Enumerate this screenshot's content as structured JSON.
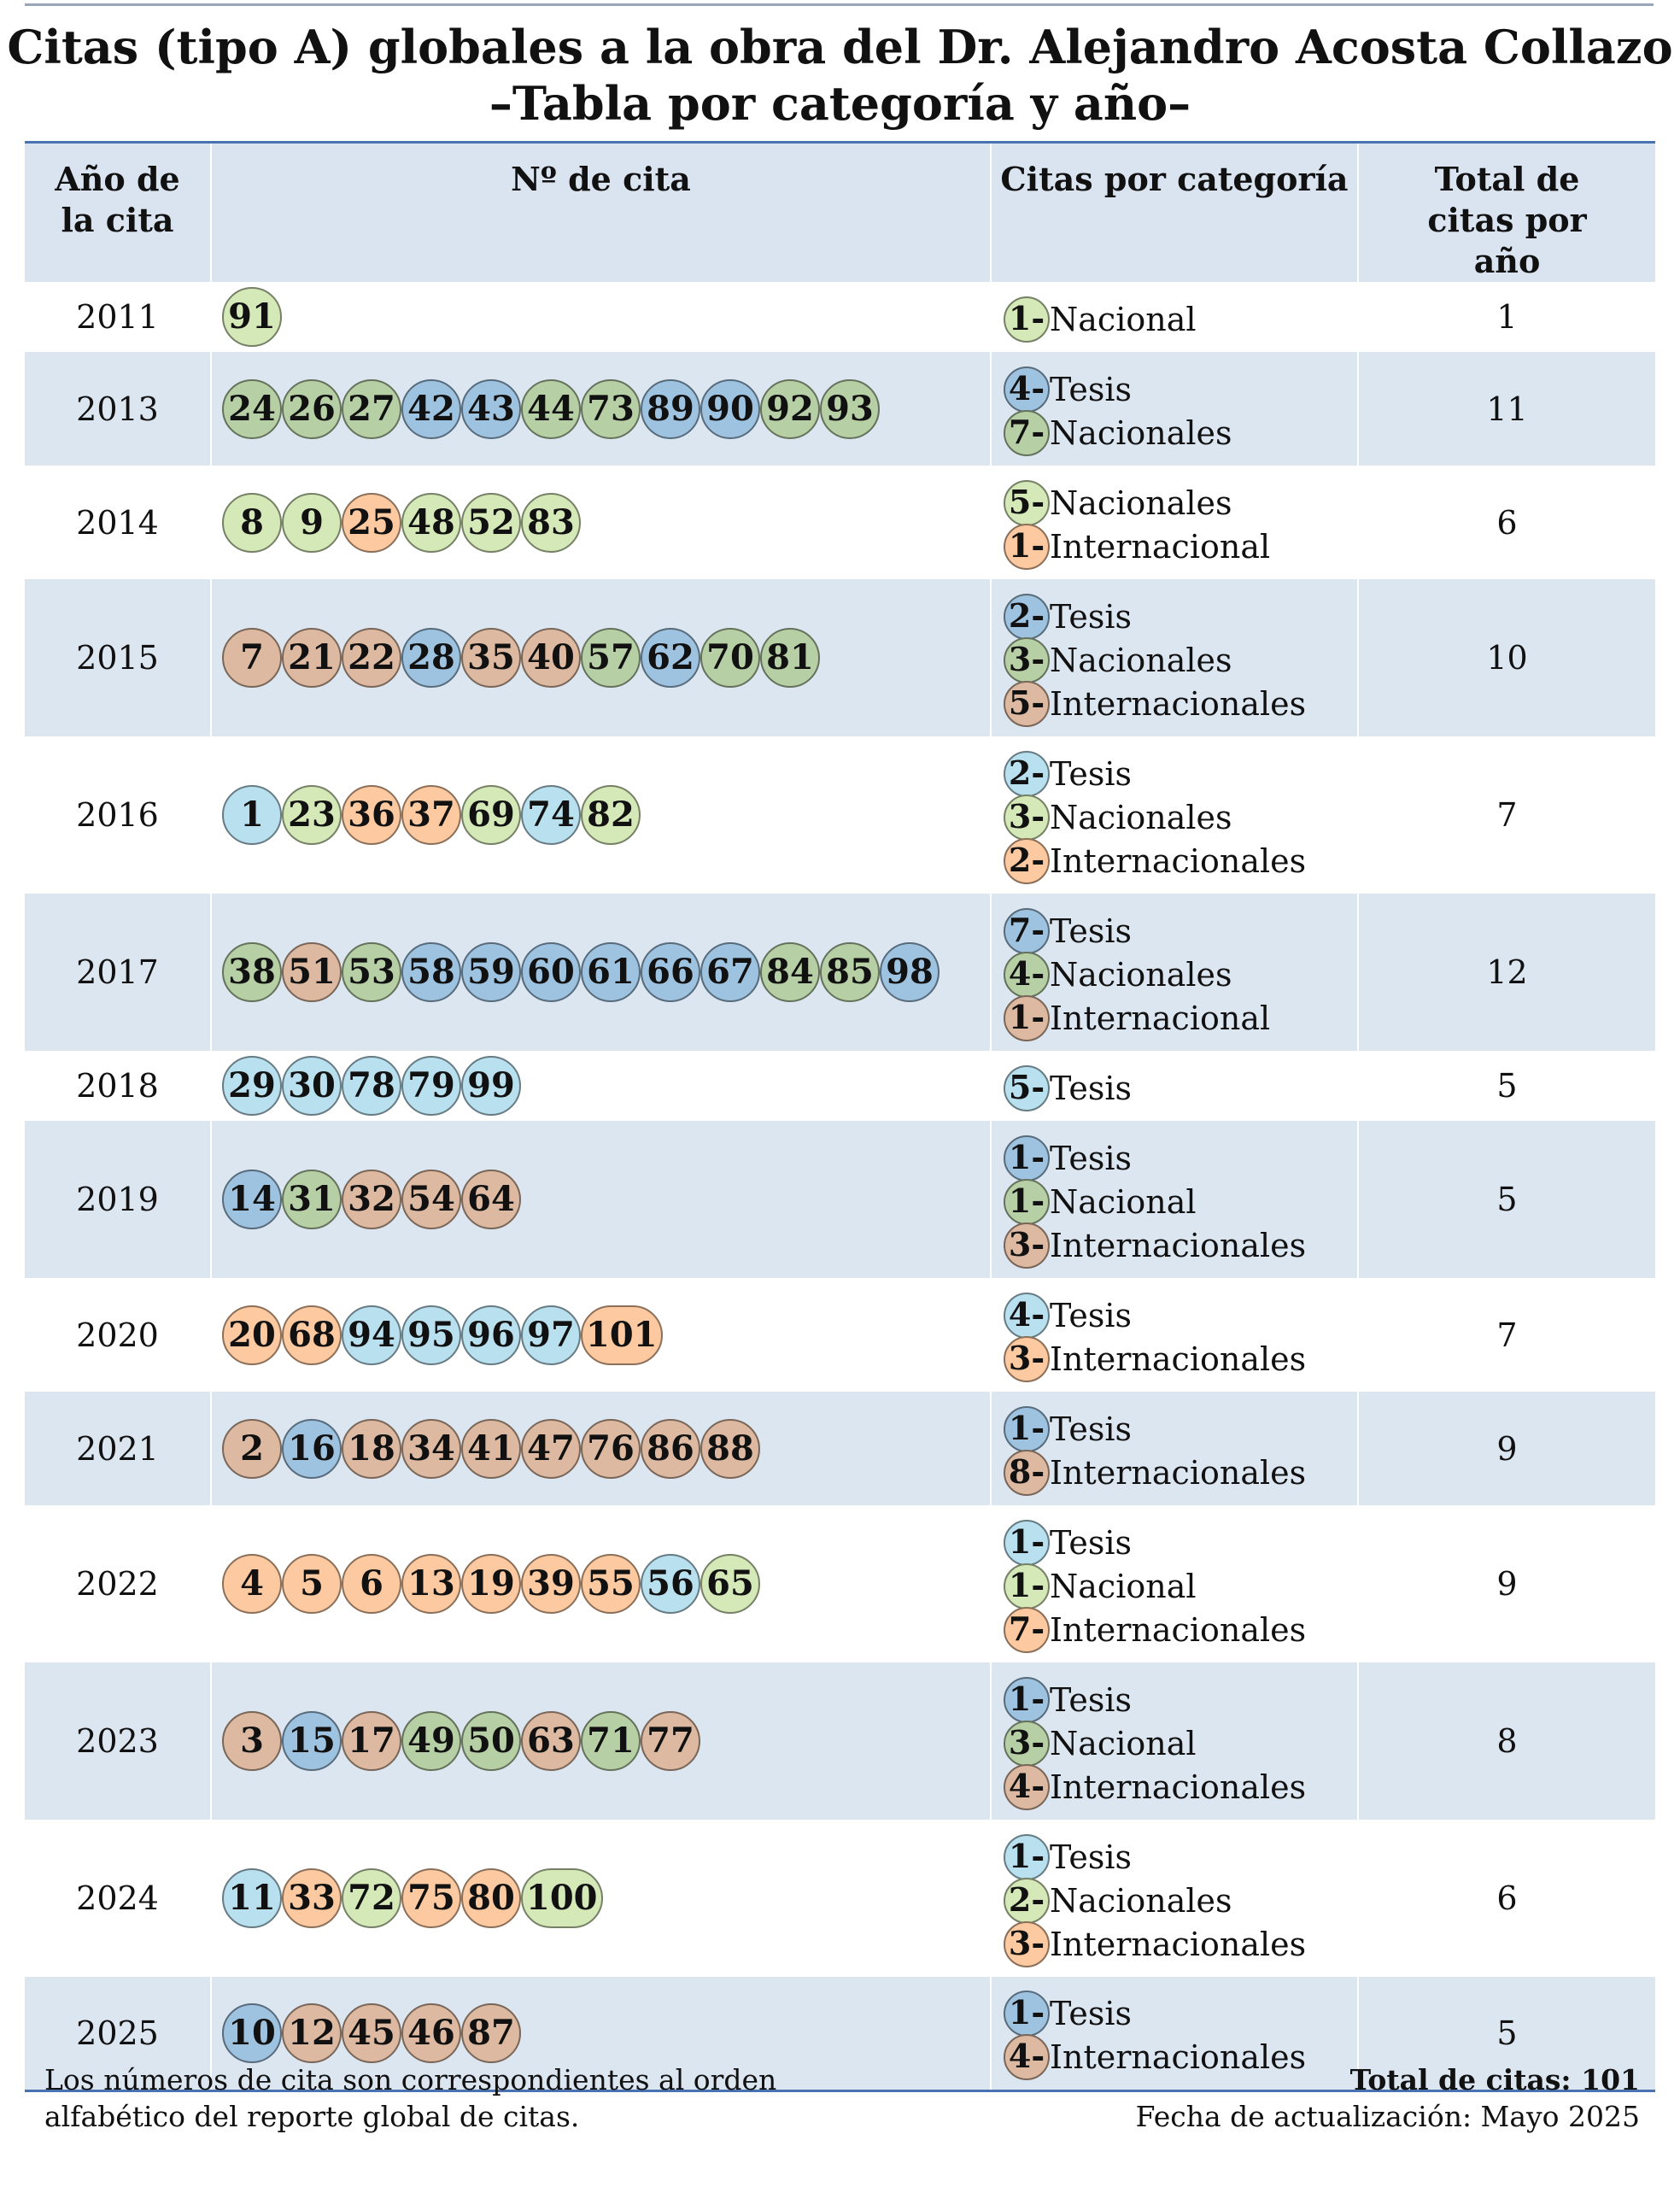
{
  "header": {
    "title": [
      "Citas (tipo A) globales a la obra del Dr. Alejandro Acosta Collazo",
      "–Tabla por categoría y año–"
    ]
  },
  "table": {
    "columns": [
      "Año de la cita",
      "Nº de cita",
      "Citas por categoría",
      "Total de citas por año"
    ],
    "rows": [
      {
        "year": "2011",
        "cites": [
          {
            "n": "91",
            "color": "#d5e8b8"
          }
        ],
        "categories": [
          {
            "count": "1-",
            "label": "Nacional",
            "color": "#d5e8b8"
          }
        ],
        "total": "1"
      },
      {
        "year": "2013",
        "cites": [
          {
            "n": "24",
            "color": "#b7cfa5"
          },
          {
            "n": "26",
            "color": "#b7cfa5"
          },
          {
            "n": "27",
            "color": "#b7cfa5"
          },
          {
            "n": "42",
            "color": "#9ec3e0"
          },
          {
            "n": "43",
            "color": "#9ec3e0"
          },
          {
            "n": "44",
            "color": "#b7cfa5"
          },
          {
            "n": "73",
            "color": "#b7cfa5"
          },
          {
            "n": "89",
            "color": "#9ec3e0"
          },
          {
            "n": "90",
            "color": "#9ec3e0"
          },
          {
            "n": "92",
            "color": "#b7cfa5"
          },
          {
            "n": "93",
            "color": "#b7cfa5"
          }
        ],
        "categories": [
          {
            "count": "4-",
            "label": "Tesis",
            "color": "#9ec3e0"
          },
          {
            "count": "7-",
            "label": "Nacionales",
            "color": "#b7cfa5"
          }
        ],
        "total": "11"
      },
      {
        "year": "2014",
        "cites": [
          {
            "n": "8",
            "color": "#d5e8b8"
          },
          {
            "n": "9",
            "color": "#d5e8b8"
          },
          {
            "n": "25",
            "color": "#fcc9a0"
          },
          {
            "n": "48",
            "color": "#d5e8b8"
          },
          {
            "n": "52",
            "color": "#d5e8b8"
          },
          {
            "n": "83",
            "color": "#d5e8b8"
          }
        ],
        "categories": [
          {
            "count": "5-",
            "label": "Nacionales",
            "color": "#d5e8b8"
          },
          {
            "count": "1-",
            "label": "Internacional",
            "color": "#fcc9a0"
          }
        ],
        "total": "6"
      },
      {
        "year": "2015",
        "cites": [
          {
            "n": "7",
            "color": "#dcb9a0"
          },
          {
            "n": "21",
            "color": "#dcb9a0"
          },
          {
            "n": "22",
            "color": "#dcb9a0"
          },
          {
            "n": "28",
            "color": "#9ec3e0"
          },
          {
            "n": "35",
            "color": "#dcb9a0"
          },
          {
            "n": "40",
            "color": "#dcb9a0"
          },
          {
            "n": "57",
            "color": "#b7cfa5"
          },
          {
            "n": "62",
            "color": "#9ec3e0"
          },
          {
            "n": "70",
            "color": "#b7cfa5"
          },
          {
            "n": "81",
            "color": "#b7cfa5"
          }
        ],
        "categories": [
          {
            "count": "2-",
            "label": "Tesis",
            "color": "#9ec3e0"
          },
          {
            "count": "3-",
            "label": "Nacionales",
            "color": "#b7cfa5"
          },
          {
            "count": "5-",
            "label": "Internacionales",
            "color": "#dcb9a0"
          }
        ],
        "total": "10"
      },
      {
        "year": "2016",
        "cites": [
          {
            "n": "1",
            "color": "#b9e0ef"
          },
          {
            "n": "23",
            "color": "#d5e8b8"
          },
          {
            "n": "36",
            "color": "#fcc9a0"
          },
          {
            "n": "37",
            "color": "#fcc9a0"
          },
          {
            "n": "69",
            "color": "#d5e8b8"
          },
          {
            "n": "74",
            "color": "#b9e0ef"
          },
          {
            "n": "82",
            "color": "#d5e8b8"
          }
        ],
        "categories": [
          {
            "count": "2-",
            "label": "Tesis",
            "color": "#b9e0ef"
          },
          {
            "count": "3-",
            "label": "Nacionales",
            "color": "#d5e8b8"
          },
          {
            "count": "2-",
            "label": "Internacionales",
            "color": "#fcc9a0"
          }
        ],
        "total": "7"
      },
      {
        "year": "2017",
        "cites": [
          {
            "n": "38",
            "color": "#b7cfa5"
          },
          {
            "n": "51",
            "color": "#dcb9a0"
          },
          {
            "n": "53",
            "color": "#b7cfa5"
          },
          {
            "n": "58",
            "color": "#9ec3e0"
          },
          {
            "n": "59",
            "color": "#9ec3e0"
          },
          {
            "n": "60",
            "color": "#9ec3e0"
          },
          {
            "n": "61",
            "color": "#9ec3e0"
          },
          {
            "n": "66",
            "color": "#9ec3e0"
          },
          {
            "n": "67",
            "color": "#9ec3e0"
          },
          {
            "n": "84",
            "color": "#b7cfa5"
          },
          {
            "n": "85",
            "color": "#b7cfa5"
          },
          {
            "n": "98",
            "color": "#9ec3e0"
          }
        ],
        "categories": [
          {
            "count": "7-",
            "label": "Tesis",
            "color": "#9ec3e0"
          },
          {
            "count": "4-",
            "label": "Nacionales",
            "color": "#b7cfa5"
          },
          {
            "count": "1-",
            "label": "Internacional",
            "color": "#dcb9a0"
          }
        ],
        "total": "12"
      },
      {
        "year": "2018",
        "cites": [
          {
            "n": "29",
            "color": "#b9e0ef"
          },
          {
            "n": "30",
            "color": "#b9e0ef"
          },
          {
            "n": "78",
            "color": "#b9e0ef"
          },
          {
            "n": "79",
            "color": "#b9e0ef"
          },
          {
            "n": "99",
            "color": "#b9e0ef"
          }
        ],
        "categories": [
          {
            "count": "5-",
            "label": "Tesis",
            "color": "#b9e0ef"
          }
        ],
        "total": "5"
      },
      {
        "year": "2019",
        "cites": [
          {
            "n": "14",
            "color": "#9ec3e0"
          },
          {
            "n": "31",
            "color": "#b7cfa5"
          },
          {
            "n": "32",
            "color": "#dcb9a0"
          },
          {
            "n": "54",
            "color": "#dcb9a0"
          },
          {
            "n": "64",
            "color": "#dcb9a0"
          }
        ],
        "categories": [
          {
            "count": "1-",
            "label": "Tesis",
            "color": "#9ec3e0"
          },
          {
            "count": "1-",
            "label": "Nacional",
            "color": "#b7cfa5"
          },
          {
            "count": "3-",
            "label": "Internacionales",
            "color": "#dcb9a0"
          }
        ],
        "total": "5"
      },
      {
        "year": "2020",
        "cites": [
          {
            "n": "20",
            "color": "#fcc9a0"
          },
          {
            "n": "68",
            "color": "#fcc9a0"
          },
          {
            "n": "94",
            "color": "#b9e0ef"
          },
          {
            "n": "95",
            "color": "#b9e0ef"
          },
          {
            "n": "96",
            "color": "#b9e0ef"
          },
          {
            "n": "97",
            "color": "#b9e0ef"
          },
          {
            "n": "101",
            "color": "#fcc9a0"
          }
        ],
        "categories": [
          {
            "count": "4-",
            "label": "Tesis",
            "color": "#b9e0ef"
          },
          {
            "count": "3-",
            "label": "Internacionales",
            "color": "#fcc9a0"
          }
        ],
        "total": "7"
      },
      {
        "year": "2021",
        "cites": [
          {
            "n": "2",
            "color": "#dcb9a0"
          },
          {
            "n": "16",
            "color": "#9ec3e0"
          },
          {
            "n": "18",
            "color": "#dcb9a0"
          },
          {
            "n": "34",
            "color": "#dcb9a0"
          },
          {
            "n": "41",
            "color": "#dcb9a0"
          },
          {
            "n": "47",
            "color": "#dcb9a0"
          },
          {
            "n": "76",
            "color": "#dcb9a0"
          },
          {
            "n": "86",
            "color": "#dcb9a0"
          },
          {
            "n": "88",
            "color": "#dcb9a0"
          }
        ],
        "categories": [
          {
            "count": "1-",
            "label": "Tesis",
            "color": "#9ec3e0"
          },
          {
            "count": "8-",
            "label": "Internacionales",
            "color": "#dcb9a0"
          }
        ],
        "total": "9"
      },
      {
        "year": "2022",
        "cites": [
          {
            "n": "4",
            "color": "#fcc9a0"
          },
          {
            "n": "5",
            "color": "#fcc9a0"
          },
          {
            "n": "6",
            "color": "#fcc9a0"
          },
          {
            "n": "13",
            "color": "#fcc9a0"
          },
          {
            "n": "19",
            "color": "#fcc9a0"
          },
          {
            "n": "39",
            "color": "#fcc9a0"
          },
          {
            "n": "55",
            "color": "#fcc9a0"
          },
          {
            "n": "56",
            "color": "#b9e0ef"
          },
          {
            "n": "65",
            "color": "#d5e8b8"
          }
        ],
        "categories": [
          {
            "count": "1-",
            "label": "Tesis",
            "color": "#b9e0ef"
          },
          {
            "count": "1-",
            "label": "Nacional",
            "color": "#d5e8b8"
          },
          {
            "count": "7-",
            "label": "Internacionales",
            "color": "#fcc9a0"
          }
        ],
        "total": "9"
      },
      {
        "year": "2023",
        "cites": [
          {
            "n": "3",
            "color": "#dcb9a0"
          },
          {
            "n": "15",
            "color": "#9ec3e0"
          },
          {
            "n": "17",
            "color": "#dcb9a0"
          },
          {
            "n": "49",
            "color": "#b7cfa5"
          },
          {
            "n": "50",
            "color": "#b7cfa5"
          },
          {
            "n": "63",
            "color": "#dcb9a0"
          },
          {
            "n": "71",
            "color": "#b7cfa5"
          },
          {
            "n": "77",
            "color": "#dcb9a0"
          }
        ],
        "categories": [
          {
            "count": "1-",
            "label": "Tesis",
            "color": "#9ec3e0"
          },
          {
            "count": "3-",
            "label": "Nacional",
            "color": "#b7cfa5"
          },
          {
            "count": "4-",
            "label": "Internacionales",
            "color": "#dcb9a0"
          }
        ],
        "total": "8"
      },
      {
        "year": "2024",
        "cites": [
          {
            "n": "11",
            "color": "#b9e0ef"
          },
          {
            "n": "33",
            "color": "#fcc9a0"
          },
          {
            "n": "72",
            "color": "#d5e8b8"
          },
          {
            "n": "75",
            "color": "#fcc9a0"
          },
          {
            "n": "80",
            "color": "#fcc9a0"
          },
          {
            "n": "100",
            "color": "#d5e8b8"
          }
        ],
        "categories": [
          {
            "count": "1-",
            "label": "Tesis",
            "color": "#b9e0ef"
          },
          {
            "count": "2-",
            "label": "Nacionales",
            "color": "#d5e8b8"
          },
          {
            "count": "3-",
            "label": "Internacionales",
            "color": "#fcc9a0"
          }
        ],
        "total": "6"
      },
      {
        "year": "2025",
        "cites": [
          {
            "n": "10",
            "color": "#9ec3e0"
          },
          {
            "n": "12",
            "color": "#dcb9a0"
          },
          {
            "n": "45",
            "color": "#dcb9a0"
          },
          {
            "n": "46",
            "color": "#dcb9a0"
          },
          {
            "n": "87",
            "color": "#dcb9a0"
          }
        ],
        "categories": [
          {
            "count": "1-",
            "label": "Tesis",
            "color": "#9ec3e0"
          },
          {
            "count": "4-",
            "label": "Internacionales",
            "color": "#dcb9a0"
          }
        ],
        "total": "5"
      }
    ]
  },
  "footer": {
    "note": [
      "Los números de cita son correspondientes al orden",
      "alfabético del reporte global de citas."
    ],
    "total": "Total de citas: 101",
    "updated": "Fecha de actualización: Mayo 2025"
  }
}
